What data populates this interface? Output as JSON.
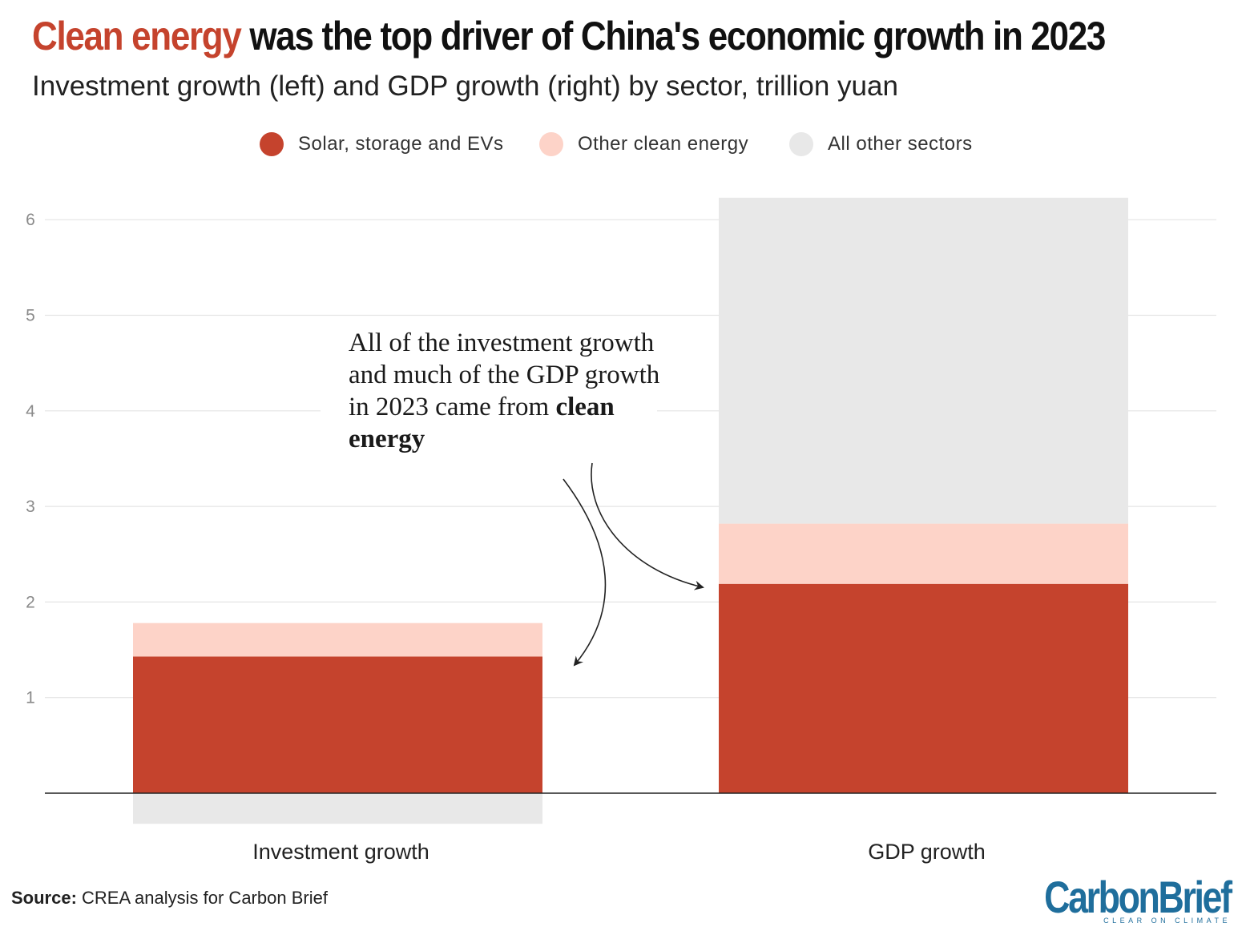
{
  "header": {
    "title_highlight": "Clean energy",
    "title_rest": " was the top driver of China's economic growth in 2023",
    "subtitle": "Investment growth (left) and GDP growth (right) by sector, trillion yuan"
  },
  "legend": [
    {
      "label": "Solar, storage and EVs",
      "color": "#c5432d"
    },
    {
      "label": "Other clean energy",
      "color": "#fdd3c8"
    },
    {
      "label": "All other sectors",
      "color": "#e8e8e8"
    }
  ],
  "annotation": {
    "text": "All of the investment growth and much of the GDP growth in 2023 came from ",
    "strong": "clean energy"
  },
  "footer": {
    "source_label": "Source:",
    "source_text": " CREA analysis for Carbon Brief"
  },
  "logo": {
    "wordmark": "CarbonBrief",
    "tagline": "CLEAR ON CLIMATE"
  },
  "chart_data": {
    "type": "bar",
    "stacked": true,
    "categories": [
      "Investment growth",
      "GDP growth"
    ],
    "series": [
      {
        "name": "Solar, storage and EVs",
        "values": [
          1.43,
          2.19
        ],
        "color": "#c5432d"
      },
      {
        "name": "Other clean energy",
        "values": [
          0.35,
          0.63
        ],
        "color": "#fdd3c8"
      },
      {
        "name": "All other sectors",
        "values": [
          -0.32,
          3.41
        ],
        "color": "#e8e8e8"
      }
    ],
    "y_ticks": [
      1,
      2,
      3,
      4,
      5,
      6
    ],
    "ylim": [
      -0.5,
      6.5
    ],
    "grid": true,
    "legend_position": "top"
  }
}
